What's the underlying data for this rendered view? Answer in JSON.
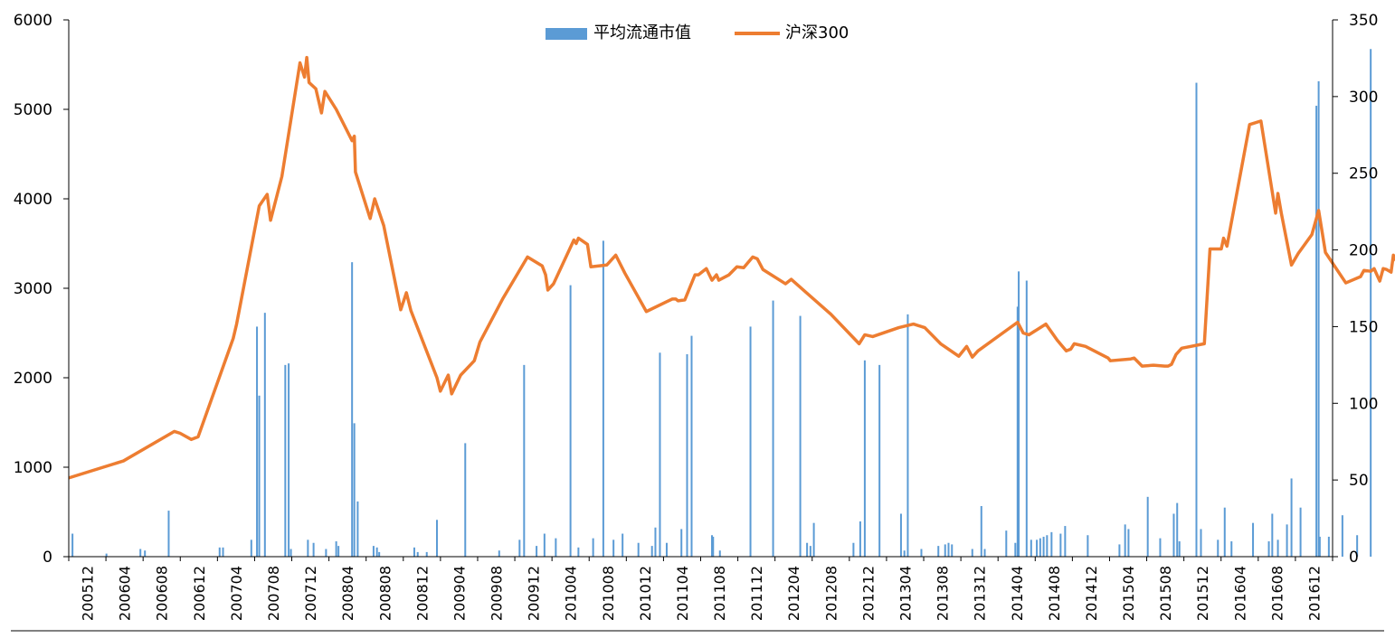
{
  "chart_data": {
    "type": "bar+line",
    "legend": {
      "position": "top-center",
      "bar_label": "平均流通市值",
      "line_label": "沪深300"
    },
    "colors": {
      "bar": "#5b9bd5",
      "line": "#ed7d31",
      "axis": "#000000"
    },
    "x_tick_labels": [
      "200512",
      "200604",
      "200608",
      "200612",
      "200704",
      "200708",
      "200712",
      "200804",
      "200808",
      "200812",
      "200904",
      "200908",
      "200912",
      "201004",
      "201008",
      "201012",
      "201104",
      "201108",
      "201112",
      "201204",
      "201208",
      "201212",
      "201304",
      "201308",
      "201312",
      "201404",
      "201408",
      "201412",
      "201504",
      "201508",
      "201512",
      "201604",
      "201608",
      "201612"
    ],
    "x_range": [
      2005.917,
      2017.083
    ],
    "y_left": {
      "min": 0,
      "max": 6000,
      "ticks": [
        0,
        1000,
        2000,
        3000,
        4000,
        5000,
        6000
      ]
    },
    "y_right": {
      "min": 0,
      "max": 350,
      "ticks": [
        0,
        50,
        100,
        150,
        200,
        250,
        300,
        350
      ]
    },
    "bar_axis": "right",
    "line_axis": "left",
    "bar_series": {
      "name": "平均流通市值",
      "points": [
        [
          2005.95,
          15
        ],
        [
          2006.25,
          2
        ],
        [
          2006.55,
          5
        ],
        [
          2006.59,
          4
        ],
        [
          2006.8,
          30
        ],
        [
          2007.25,
          6
        ],
        [
          2007.28,
          6
        ],
        [
          2007.53,
          11
        ],
        [
          2007.58,
          150
        ],
        [
          2007.6,
          105
        ],
        [
          2007.65,
          159
        ],
        [
          2007.83,
          125
        ],
        [
          2007.86,
          126
        ],
        [
          2007.88,
          5
        ],
        [
          2008.03,
          11
        ],
        [
          2008.08,
          9
        ],
        [
          2008.19,
          5
        ],
        [
          2008.28,
          10
        ],
        [
          2008.3,
          7
        ],
        [
          2008.42,
          192
        ],
        [
          2008.44,
          87
        ],
        [
          2008.47,
          36
        ],
        [
          2008.61,
          7
        ],
        [
          2008.64,
          6
        ],
        [
          2008.66,
          3
        ],
        [
          2008.97,
          6
        ],
        [
          2009.0,
          3
        ],
        [
          2009.08,
          3
        ],
        [
          2009.17,
          24
        ],
        [
          2009.42,
          74
        ],
        [
          2009.72,
          4
        ],
        [
          2009.9,
          11
        ],
        [
          2009.94,
          125
        ],
        [
          2010.05,
          7
        ],
        [
          2010.12,
          15
        ],
        [
          2010.22,
          12
        ],
        [
          2010.35,
          177
        ],
        [
          2010.42,
          6
        ],
        [
          2010.55,
          12
        ],
        [
          2010.64,
          206
        ],
        [
          2010.73,
          11
        ],
        [
          2010.81,
          15
        ],
        [
          2010.95,
          9
        ],
        [
          2011.07,
          7
        ],
        [
          2011.1,
          19
        ],
        [
          2011.14,
          133
        ],
        [
          2011.2,
          9
        ],
        [
          2011.33,
          18
        ],
        [
          2011.38,
          132
        ],
        [
          2011.42,
          144
        ],
        [
          2011.6,
          14
        ],
        [
          2011.61,
          13
        ],
        [
          2011.67,
          4
        ],
        [
          2011.94,
          150
        ],
        [
          2012.14,
          167
        ],
        [
          2012.38,
          157
        ],
        [
          2012.44,
          9
        ],
        [
          2012.47,
          7
        ],
        [
          2012.5,
          22
        ],
        [
          2012.85,
          9
        ],
        [
          2012.91,
          23
        ],
        [
          2012.95,
          128
        ],
        [
          2013.08,
          125
        ],
        [
          2013.27,
          28
        ],
        [
          2013.3,
          4
        ],
        [
          2013.33,
          158
        ],
        [
          2013.45,
          5
        ],
        [
          2013.6,
          7
        ],
        [
          2013.66,
          8
        ],
        [
          2013.69,
          9
        ],
        [
          2013.72,
          8
        ],
        [
          2013.9,
          5
        ],
        [
          2013.98,
          33
        ],
        [
          2014.01,
          5
        ],
        [
          2014.2,
          17
        ],
        [
          2014.28,
          9
        ],
        [
          2014.3,
          163
        ],
        [
          2014.31,
          186
        ],
        [
          2014.38,
          180
        ],
        [
          2014.42,
          11
        ],
        [
          2014.47,
          11
        ],
        [
          2014.5,
          12
        ],
        [
          2014.53,
          13
        ],
        [
          2014.56,
          14
        ],
        [
          2014.6,
          16
        ],
        [
          2014.68,
          15
        ],
        [
          2014.72,
          20
        ],
        [
          2014.92,
          14
        ],
        [
          2015.2,
          8
        ],
        [
          2015.25,
          21
        ],
        [
          2015.28,
          18
        ],
        [
          2015.45,
          39
        ],
        [
          2015.56,
          12
        ],
        [
          2015.68,
          28
        ],
        [
          2015.71,
          35
        ],
        [
          2015.73,
          10
        ],
        [
          2015.88,
          309
        ],
        [
          2015.92,
          18
        ],
        [
          2016.07,
          11
        ],
        [
          2016.13,
          32
        ],
        [
          2016.19,
          10
        ],
        [
          2016.38,
          22
        ],
        [
          2016.52,
          10
        ],
        [
          2016.55,
          28
        ],
        [
          2016.6,
          11
        ],
        [
          2016.68,
          21
        ],
        [
          2016.72,
          51
        ],
        [
          2016.8,
          32
        ],
        [
          2016.94,
          294
        ],
        [
          2016.96,
          310
        ],
        [
          2016.97,
          13
        ],
        [
          2017.05,
          13
        ],
        [
          2017.17,
          27
        ],
        [
          2017.3,
          14
        ],
        [
          2017.42,
          331
        ]
      ]
    },
    "line_series": {
      "name": "沪深300",
      "points": [
        [
          2005.917,
          880
        ],
        [
          2006.4,
          1070
        ],
        [
          2006.85,
          1400
        ],
        [
          2006.9,
          1380
        ],
        [
          2007.0,
          1310
        ],
        [
          2007.06,
          1340
        ],
        [
          2007.37,
          2440
        ],
        [
          2007.4,
          2600
        ],
        [
          2007.6,
          3920
        ],
        [
          2007.67,
          4050
        ],
        [
          2007.7,
          3760
        ],
        [
          2007.8,
          4250
        ],
        [
          2007.96,
          5520
        ],
        [
          2008.0,
          5360
        ],
        [
          2008.02,
          5580
        ],
        [
          2008.04,
          5300
        ],
        [
          2008.1,
          5230
        ],
        [
          2008.15,
          4960
        ],
        [
          2008.18,
          5200
        ],
        [
          2008.28,
          5000
        ],
        [
          2008.42,
          4650
        ],
        [
          2008.44,
          4700
        ],
        [
          2008.45,
          4300
        ],
        [
          2008.58,
          3780
        ],
        [
          2008.62,
          4000
        ],
        [
          2008.7,
          3700
        ],
        [
          2008.85,
          2760
        ],
        [
          2008.9,
          2950
        ],
        [
          2008.94,
          2750
        ],
        [
          2009.17,
          2000
        ],
        [
          2009.2,
          1850
        ],
        [
          2009.27,
          2030
        ],
        [
          2009.3,
          1820
        ],
        [
          2009.38,
          2030
        ],
        [
          2009.5,
          2190
        ],
        [
          2009.55,
          2400
        ],
        [
          2009.75,
          2880
        ],
        [
          2009.97,
          3350
        ],
        [
          2010.1,
          3250
        ],
        [
          2010.13,
          3150
        ],
        [
          2010.15,
          2980
        ],
        [
          2010.2,
          3050
        ],
        [
          2010.38,
          3540
        ],
        [
          2010.4,
          3500
        ],
        [
          2010.42,
          3560
        ],
        [
          2010.5,
          3490
        ],
        [
          2010.53,
          3240
        ],
        [
          2010.67,
          3260
        ],
        [
          2010.75,
          3370
        ],
        [
          2010.83,
          3170
        ],
        [
          2011.02,
          2740
        ],
        [
          2011.2,
          2850
        ],
        [
          2011.25,
          2880
        ],
        [
          2011.28,
          2880
        ],
        [
          2011.3,
          2860
        ],
        [
          2011.36,
          2870
        ],
        [
          2011.45,
          3150
        ],
        [
          2011.48,
          3150
        ],
        [
          2011.55,
          3220
        ],
        [
          2011.6,
          3090
        ],
        [
          2011.64,
          3150
        ],
        [
          2011.66,
          3090
        ],
        [
          2011.75,
          3150
        ],
        [
          2011.82,
          3240
        ],
        [
          2011.88,
          3230
        ],
        [
          2011.96,
          3350
        ],
        [
          2012.0,
          3330
        ],
        [
          2012.05,
          3210
        ],
        [
          2012.25,
          3050
        ],
        [
          2012.3,
          3100
        ],
        [
          2012.65,
          2710
        ],
        [
          2012.9,
          2380
        ],
        [
          2012.95,
          2480
        ],
        [
          2013.02,
          2460
        ],
        [
          2013.25,
          2560
        ],
        [
          2013.38,
          2600
        ],
        [
          2013.48,
          2560
        ],
        [
          2013.62,
          2380
        ],
        [
          2013.78,
          2240
        ],
        [
          2013.85,
          2350
        ],
        [
          2013.9,
          2230
        ],
        [
          2013.95,
          2300
        ],
        [
          2014.3,
          2620
        ],
        [
          2014.35,
          2500
        ],
        [
          2014.4,
          2480
        ],
        [
          2014.55,
          2600
        ],
        [
          2014.65,
          2420
        ],
        [
          2014.73,
          2300
        ],
        [
          2014.77,
          2320
        ],
        [
          2014.8,
          2380
        ],
        [
          2014.9,
          2350
        ],
        [
          2015.1,
          2220
        ],
        [
          2015.12,
          2190
        ],
        [
          2015.3,
          2210
        ],
        [
          2015.33,
          2220
        ],
        [
          2015.4,
          2130
        ],
        [
          2015.5,
          2140
        ],
        [
          2015.6,
          2130
        ],
        [
          2015.63,
          2130
        ],
        [
          2015.66,
          2150
        ],
        [
          2015.7,
          2260
        ],
        [
          2015.75,
          2330
        ],
        [
          2015.95,
          2380
        ],
        [
          2016.0,
          3440
        ],
        [
          2016.1,
          3440
        ],
        [
          2016.12,
          3560
        ],
        [
          2016.15,
          3470
        ],
        [
          2016.35,
          4830
        ],
        [
          2016.45,
          4870
        ],
        [
          2016.58,
          3840
        ],
        [
          2016.6,
          4060
        ],
        [
          2016.63,
          3840
        ],
        [
          2016.72,
          3260
        ],
        [
          2016.78,
          3390
        ],
        [
          2016.9,
          3600
        ],
        [
          2016.96,
          3870
        ],
        [
          2017.02,
          3400
        ],
        [
          2017.2,
          3060
        ],
        [
          2017.33,
          3130
        ],
        [
          2017.36,
          3200
        ],
        [
          2017.42,
          3190
        ],
        [
          2017.45,
          3220
        ],
        [
          2017.5,
          3080
        ],
        [
          2017.53,
          3220
        ],
        [
          2017.56,
          3210
        ],
        [
          2017.6,
          3180
        ],
        [
          2017.62,
          3370
        ],
        [
          2017.67,
          3250
        ],
        [
          2017.75,
          3330
        ],
        [
          2017.85,
          3380
        ],
        [
          2017.92,
          3370
        ]
      ]
    }
  }
}
